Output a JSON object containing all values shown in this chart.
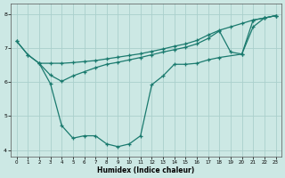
{
  "xlabel": "Humidex (Indice chaleur)",
  "bg_color": "#cce8e4",
  "grid_color": "#aacfcc",
  "line_color": "#1a7a6e",
  "xlim": [
    -0.5,
    23.5
  ],
  "ylim": [
    3.8,
    8.3
  ],
  "yticks": [
    4,
    5,
    6,
    7,
    8
  ],
  "xticks": [
    0,
    1,
    2,
    3,
    4,
    5,
    6,
    7,
    8,
    9,
    10,
    11,
    12,
    13,
    14,
    15,
    16,
    17,
    18,
    19,
    20,
    21,
    22,
    23
  ],
  "line1_x": [
    0,
    1,
    2,
    3,
    4,
    5,
    6,
    7,
    8,
    9,
    10,
    11,
    12,
    13,
    14,
    15,
    16,
    17,
    18,
    19,
    20,
    21,
    22,
    23
  ],
  "line1_y": [
    7.2,
    6.8,
    6.55,
    6.55,
    6.55,
    6.57,
    6.6,
    6.63,
    6.68,
    6.73,
    6.78,
    6.83,
    6.9,
    6.97,
    7.05,
    7.12,
    7.22,
    7.38,
    7.52,
    7.62,
    7.72,
    7.82,
    7.88,
    7.95
  ],
  "line2_x": [
    2,
    3,
    4,
    5,
    6,
    7,
    8,
    9,
    10,
    11,
    12,
    13,
    14,
    15,
    16,
    17,
    18,
    19,
    20,
    21,
    22,
    23
  ],
  "line2_y": [
    6.55,
    6.2,
    6.02,
    6.18,
    6.3,
    6.42,
    6.52,
    6.58,
    6.65,
    6.72,
    6.8,
    6.88,
    6.95,
    7.02,
    7.12,
    7.28,
    7.5,
    6.88,
    6.82,
    7.82,
    7.88,
    7.95
  ],
  "line3_x": [
    0,
    1,
    2,
    3,
    4,
    5,
    6,
    7,
    8,
    9,
    10,
    11,
    12,
    13,
    14,
    15,
    16,
    17,
    18,
    20,
    21,
    22,
    23
  ],
  "line3_y": [
    7.2,
    6.8,
    6.55,
    5.95,
    4.72,
    4.35,
    4.42,
    4.42,
    4.18,
    4.1,
    4.18,
    4.42,
    5.92,
    6.18,
    6.52,
    6.52,
    6.55,
    6.65,
    6.72,
    6.82,
    7.62,
    7.88,
    7.95
  ]
}
